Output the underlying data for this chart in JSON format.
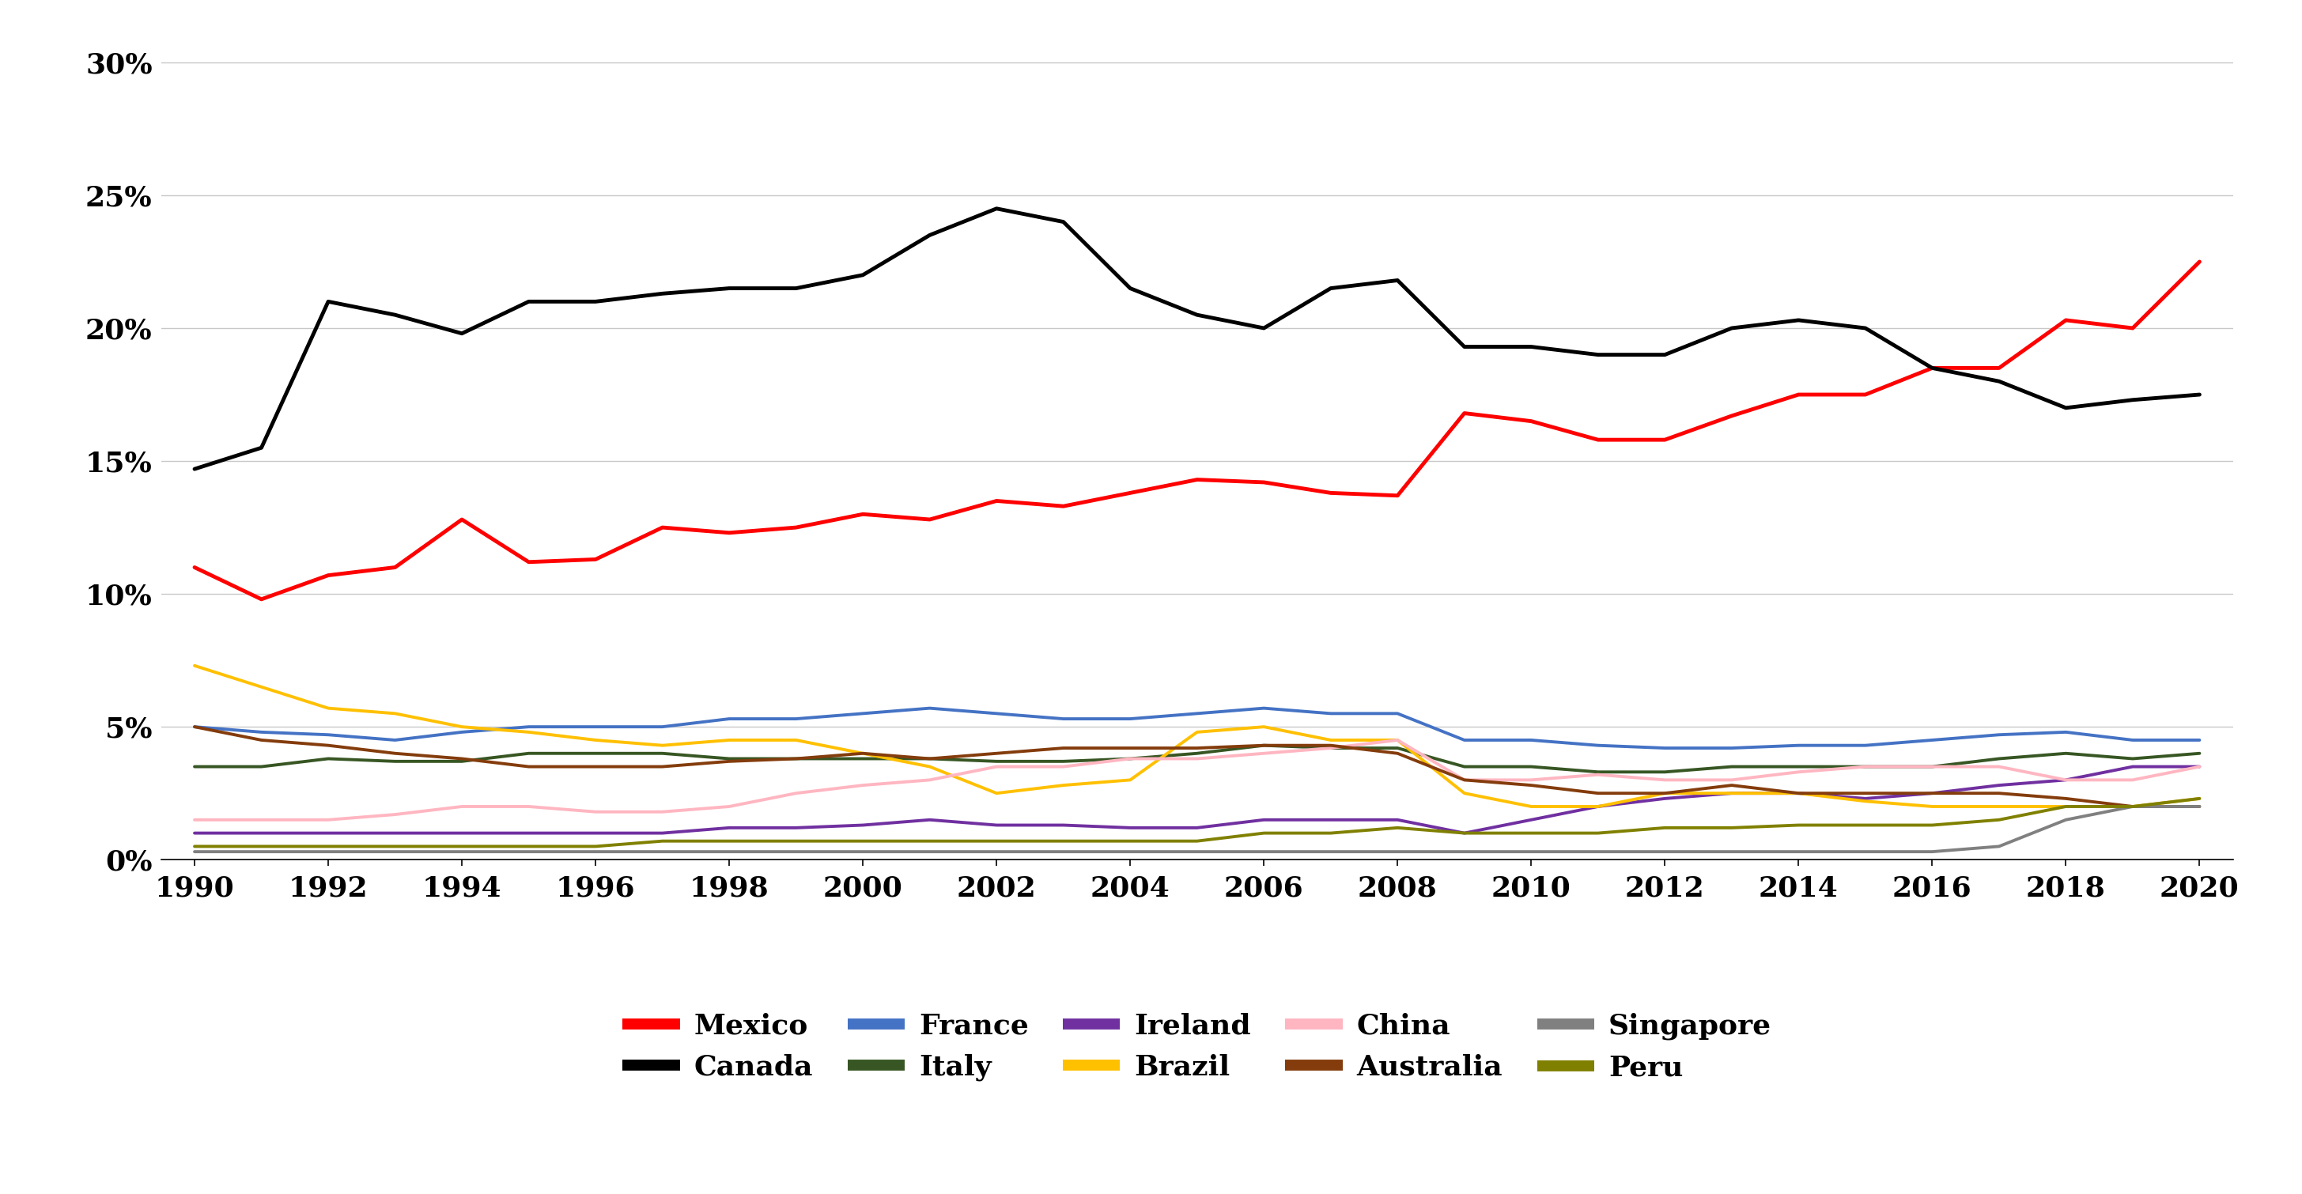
{
  "years": [
    1990,
    1991,
    1992,
    1993,
    1994,
    1995,
    1996,
    1997,
    1998,
    1999,
    2000,
    2001,
    2002,
    2003,
    2004,
    2005,
    2006,
    2007,
    2008,
    2009,
    2010,
    2011,
    2012,
    2013,
    2014,
    2015,
    2016,
    2017,
    2018,
    2019,
    2020
  ],
  "series": {
    "Mexico": {
      "color": "#FF0000",
      "linewidth": 3.5,
      "values": [
        11.0,
        9.8,
        10.7,
        11.0,
        12.8,
        11.2,
        11.3,
        12.5,
        12.3,
        12.5,
        13.0,
        12.8,
        13.5,
        13.3,
        13.8,
        14.3,
        14.2,
        13.8,
        13.7,
        16.8,
        16.5,
        15.8,
        15.8,
        16.7,
        17.5,
        17.5,
        18.5,
        18.5,
        20.3,
        20.0,
        22.5
      ]
    },
    "Canada": {
      "color": "#000000",
      "linewidth": 3.5,
      "values": [
        14.7,
        15.5,
        21.0,
        20.5,
        19.8,
        21.0,
        21.0,
        21.3,
        21.5,
        21.5,
        22.0,
        23.5,
        24.5,
        24.0,
        21.5,
        20.5,
        20.0,
        21.5,
        21.8,
        19.3,
        19.3,
        19.0,
        19.0,
        20.0,
        20.3,
        20.0,
        18.5,
        18.0,
        17.0,
        17.3,
        17.5
      ]
    },
    "France": {
      "color": "#4472C4",
      "linewidth": 2.8,
      "values": [
        5.0,
        4.8,
        4.7,
        4.5,
        4.8,
        5.0,
        5.0,
        5.0,
        5.3,
        5.3,
        5.5,
        5.7,
        5.5,
        5.3,
        5.3,
        5.5,
        5.7,
        5.5,
        5.5,
        4.5,
        4.5,
        4.3,
        4.2,
        4.2,
        4.3,
        4.3,
        4.5,
        4.7,
        4.8,
        4.5,
        4.5
      ]
    },
    "Italy": {
      "color": "#375623",
      "linewidth": 2.8,
      "values": [
        3.5,
        3.5,
        3.8,
        3.7,
        3.7,
        4.0,
        4.0,
        4.0,
        3.8,
        3.8,
        3.8,
        3.8,
        3.7,
        3.7,
        3.8,
        4.0,
        4.3,
        4.2,
        4.2,
        3.5,
        3.5,
        3.3,
        3.3,
        3.5,
        3.5,
        3.5,
        3.5,
        3.8,
        4.0,
        3.8,
        4.0
      ]
    },
    "Ireland": {
      "color": "#7030A0",
      "linewidth": 2.8,
      "values": [
        1.0,
        1.0,
        1.0,
        1.0,
        1.0,
        1.0,
        1.0,
        1.0,
        1.2,
        1.2,
        1.3,
        1.5,
        1.3,
        1.3,
        1.2,
        1.2,
        1.5,
        1.5,
        1.5,
        1.0,
        1.5,
        2.0,
        2.3,
        2.5,
        2.5,
        2.3,
        2.5,
        2.8,
        3.0,
        3.5,
        3.5
      ]
    },
    "Brazil": {
      "color": "#FFC000",
      "linewidth": 2.8,
      "values": [
        7.3,
        6.5,
        5.7,
        5.5,
        5.0,
        4.8,
        4.5,
        4.3,
        4.5,
        4.5,
        4.0,
        3.5,
        2.5,
        2.8,
        3.0,
        4.8,
        5.0,
        4.5,
        4.5,
        2.5,
        2.0,
        2.0,
        2.5,
        2.5,
        2.5,
        2.2,
        2.0,
        2.0,
        2.0,
        2.0,
        2.3
      ]
    },
    "China": {
      "color": "#FFB6C1",
      "linewidth": 2.8,
      "values": [
        1.5,
        1.5,
        1.5,
        1.7,
        2.0,
        2.0,
        1.8,
        1.8,
        2.0,
        2.5,
        2.8,
        3.0,
        3.5,
        3.5,
        3.8,
        3.8,
        4.0,
        4.2,
        4.5,
        3.0,
        3.0,
        3.2,
        3.0,
        3.0,
        3.3,
        3.5,
        3.5,
        3.5,
        3.0,
        3.0,
        3.5
      ]
    },
    "Australia": {
      "color": "#843C0C",
      "linewidth": 2.8,
      "values": [
        5.0,
        4.5,
        4.3,
        4.0,
        3.8,
        3.5,
        3.5,
        3.5,
        3.7,
        3.8,
        4.0,
        3.8,
        4.0,
        4.2,
        4.2,
        4.2,
        4.3,
        4.3,
        4.0,
        3.0,
        2.8,
        2.5,
        2.5,
        2.8,
        2.5,
        2.5,
        2.5,
        2.5,
        2.3,
        2.0,
        2.0
      ]
    },
    "Singapore": {
      "color": "#808080",
      "linewidth": 2.8,
      "values": [
        0.3,
        0.3,
        0.3,
        0.3,
        0.3,
        0.3,
        0.3,
        0.3,
        0.3,
        0.3,
        0.3,
        0.3,
        0.3,
        0.3,
        0.3,
        0.3,
        0.3,
        0.3,
        0.3,
        0.3,
        0.3,
        0.3,
        0.3,
        0.3,
        0.3,
        0.3,
        0.3,
        0.5,
        1.5,
        2.0,
        2.0
      ]
    },
    "Peru": {
      "color": "#808000",
      "linewidth": 2.8,
      "values": [
        0.5,
        0.5,
        0.5,
        0.5,
        0.5,
        0.5,
        0.5,
        0.7,
        0.7,
        0.7,
        0.7,
        0.7,
        0.7,
        0.7,
        0.7,
        0.7,
        1.0,
        1.0,
        1.2,
        1.0,
        1.0,
        1.0,
        1.2,
        1.2,
        1.3,
        1.3,
        1.3,
        1.5,
        2.0,
        2.0,
        2.3
      ]
    }
  },
  "yticks": [
    0,
    5,
    10,
    15,
    20,
    25,
    30
  ],
  "ylim": [
    0,
    31
  ],
  "xticks": [
    1990,
    1992,
    1994,
    1996,
    1998,
    2000,
    2002,
    2004,
    2006,
    2008,
    2010,
    2012,
    2014,
    2016,
    2018,
    2020
  ],
  "xlim": [
    1989.5,
    2020.5
  ],
  "legend_order": [
    "Mexico",
    "Canada",
    "France",
    "Italy",
    "Ireland",
    "Brazil",
    "China",
    "Australia",
    "Singapore",
    "Peru"
  ],
  "legend_ncol": 5,
  "background_color": "#FFFFFF",
  "grid_color": "#C8C8C8",
  "tick_fontsize": 26,
  "legend_fontsize": 26
}
